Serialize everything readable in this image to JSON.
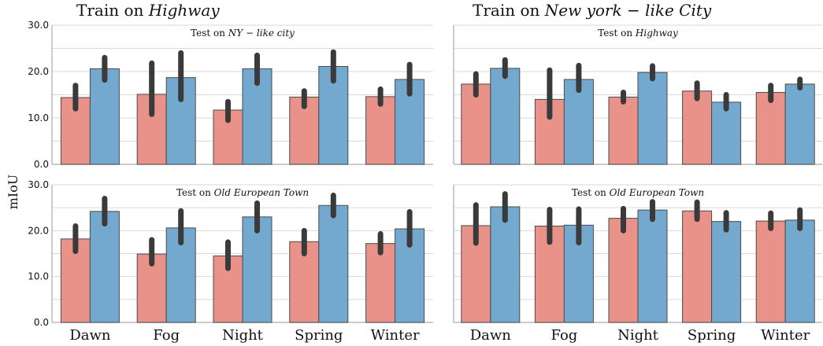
{
  "figure": {
    "col_titles": [
      {
        "prefix": "Train on ",
        "emph": "Highway"
      },
      {
        "prefix": "Train on ",
        "emph": "New york − like City"
      }
    ],
    "ylabel": "mIoU"
  },
  "colors": {
    "series_red": "#e8928a",
    "series_blue": "#74a9cf",
    "error_bar": "#3a3a3a",
    "grid": "#d9d9d9",
    "axis": "#bcbcbc"
  },
  "chart_data": [
    {
      "type": "bar",
      "panel": "top-left",
      "title": {
        "prefix": "Test on ",
        "emph": "NY − like city"
      },
      "categories": [
        "Dawn",
        "Fog",
        "Night",
        "Spring",
        "Winter"
      ],
      "ylim": [
        0,
        30
      ],
      "yticks": [
        "0.0",
        "10.0",
        "20.0",
        "30.0"
      ],
      "grid": true,
      "series": [
        {
          "values": [
            14.4,
            15.1,
            11.7,
            14.5,
            14.6
          ],
          "err_low": [
            12.0,
            10.8,
            9.5,
            12.5,
            13.0
          ],
          "err_high": [
            17.0,
            21.8,
            13.5,
            15.8,
            16.2
          ]
        },
        {
          "values": [
            20.6,
            18.7,
            20.6,
            21.1,
            18.3
          ],
          "err_low": [
            18.2,
            14.0,
            17.5,
            18.0,
            15.2
          ],
          "err_high": [
            23.0,
            24.0,
            23.5,
            24.2,
            21.5
          ]
        }
      ]
    },
    {
      "type": "bar",
      "panel": "top-right",
      "title": {
        "prefix": "Test on ",
        "emph": "Highway"
      },
      "categories": [
        "Dawn",
        "Fog",
        "Night",
        "Spring",
        "Winter"
      ],
      "ylim": [
        0,
        30
      ],
      "yticks": [
        "0.0",
        "10.0",
        "20.0",
        "30.0"
      ],
      "grid": true,
      "series": [
        {
          "values": [
            17.3,
            14.0,
            14.5,
            15.8,
            15.5
          ],
          "err_low": [
            15.0,
            10.2,
            13.5,
            14.2,
            13.8
          ],
          "err_high": [
            19.5,
            20.3,
            15.5,
            17.5,
            17.0
          ]
        },
        {
          "values": [
            20.7,
            18.3,
            19.8,
            13.4,
            17.3
          ],
          "err_low": [
            19.0,
            16.0,
            18.5,
            12.0,
            16.5
          ],
          "err_high": [
            22.5,
            21.3,
            21.2,
            15.0,
            18.3
          ]
        }
      ]
    },
    {
      "type": "bar",
      "panel": "bottom-left",
      "title": {
        "prefix": "Test on ",
        "emph": "Old European Town"
      },
      "categories": [
        "Dawn",
        "Fog",
        "Night",
        "Spring",
        "Winter"
      ],
      "ylim": [
        0,
        30
      ],
      "yticks": [
        "0.0",
        "10.0",
        "20.0",
        "30.0"
      ],
      "grid": true,
      "series": [
        {
          "values": [
            18.2,
            14.9,
            14.5,
            17.6,
            17.2
          ],
          "err_low": [
            15.5,
            12.8,
            11.8,
            15.0,
            15.2
          ],
          "err_high": [
            21.0,
            18.0,
            17.5,
            20.0,
            19.3
          ]
        },
        {
          "values": [
            24.2,
            20.6,
            23.0,
            25.5,
            20.4
          ],
          "err_low": [
            21.5,
            17.4,
            20.0,
            23.3,
            16.9
          ],
          "err_high": [
            27.0,
            24.3,
            26.0,
            27.7,
            24.1
          ]
        }
      ]
    },
    {
      "type": "bar",
      "panel": "bottom-right",
      "title": {
        "prefix": "Test on ",
        "emph": "Old European Town"
      },
      "categories": [
        "Dawn",
        "Fog",
        "Night",
        "Spring",
        "Winter"
      ],
      "ylim": [
        0,
        30
      ],
      "yticks": [
        "0.0",
        "10.0",
        "20.0",
        "30.0"
      ],
      "grid": true,
      "series": [
        {
          "values": [
            21.1,
            21.0,
            22.7,
            24.3,
            22.1
          ],
          "err_low": [
            17.3,
            17.5,
            20.0,
            22.5,
            20.5
          ],
          "err_high": [
            25.6,
            24.6,
            24.8,
            26.2,
            23.8
          ]
        },
        {
          "values": [
            25.2,
            21.2,
            24.5,
            22.0,
            22.3
          ],
          "err_low": [
            22.3,
            17.4,
            22.5,
            20.2,
            20.5
          ],
          "err_high": [
            28.0,
            24.7,
            26.3,
            23.9,
            24.5
          ]
        }
      ]
    }
  ]
}
